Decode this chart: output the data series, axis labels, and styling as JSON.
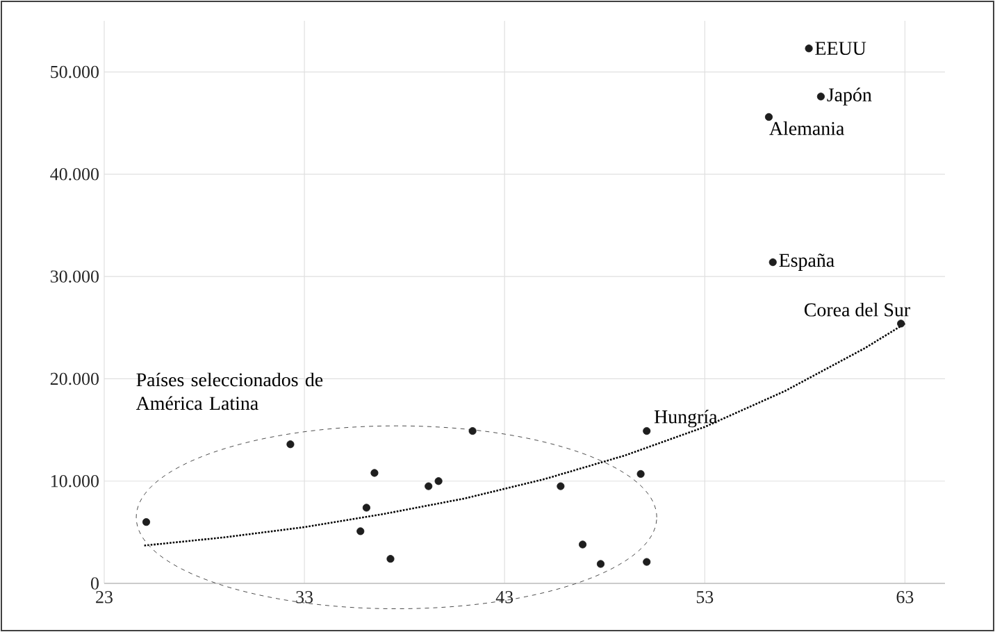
{
  "chart_data": {
    "type": "scatter",
    "xlim": [
      23,
      65
    ],
    "ylim": [
      0,
      55000
    ],
    "xticks": [
      23,
      33,
      43,
      53,
      63
    ],
    "yticks": [
      {
        "value": 0,
        "label": "0"
      },
      {
        "value": 10000,
        "label": "10.000"
      },
      {
        "value": 20000,
        "label": "20.000"
      },
      {
        "value": 30000,
        "label": "30.000"
      },
      {
        "value": 40000,
        "label": "40.000"
      },
      {
        "value": 50000,
        "label": "50.000"
      }
    ],
    "grid": true,
    "series": [
      {
        "color": "#1e1e1e",
        "marker": "circle",
        "x": [
          25.1,
          32.3,
          36.5,
          36.1,
          35.8,
          37.3,
          39.2,
          39.7,
          41.4,
          45.8,
          46.9,
          47.8,
          49.8,
          50.1,
          50.1,
          58.2,
          58.8,
          56.2,
          56.4,
          62.8
        ],
        "values": [
          6000,
          13600,
          10800,
          7400,
          5100,
          2400,
          9500,
          10000,
          14900,
          9500,
          3800,
          1900,
          10700,
          14900,
          2100,
          52300,
          47600,
          45600,
          31400,
          25400
        ]
      },
      {
        "type": "line",
        "color": "#000000",
        "marker": "none",
        "line_style": "dotted",
        "x": [
          25,
          29,
          33,
          37,
          41,
          45,
          49,
          53,
          57,
          61,
          63
        ],
        "values": [
          3700,
          4500,
          5500,
          6800,
          8300,
          10200,
          12500,
          15300,
          18800,
          23000,
          25400
        ]
      }
    ],
    "annotations": [
      {
        "text": "EEUU",
        "x": 58.2,
        "y": 52300
      },
      {
        "text": "Japón",
        "x": 58.8,
        "y": 47600
      },
      {
        "text": "Alemania",
        "x": 56.2,
        "y": 45600
      },
      {
        "text": "España",
        "x": 56.4,
        "y": 31400
      },
      {
        "text": "Corea del Sur",
        "x": 62.8,
        "y": 25400
      },
      {
        "text": "Hungría",
        "x": 50.1,
        "y": 14900
      },
      "Países seleccionados de América Latina"
    ]
  }
}
